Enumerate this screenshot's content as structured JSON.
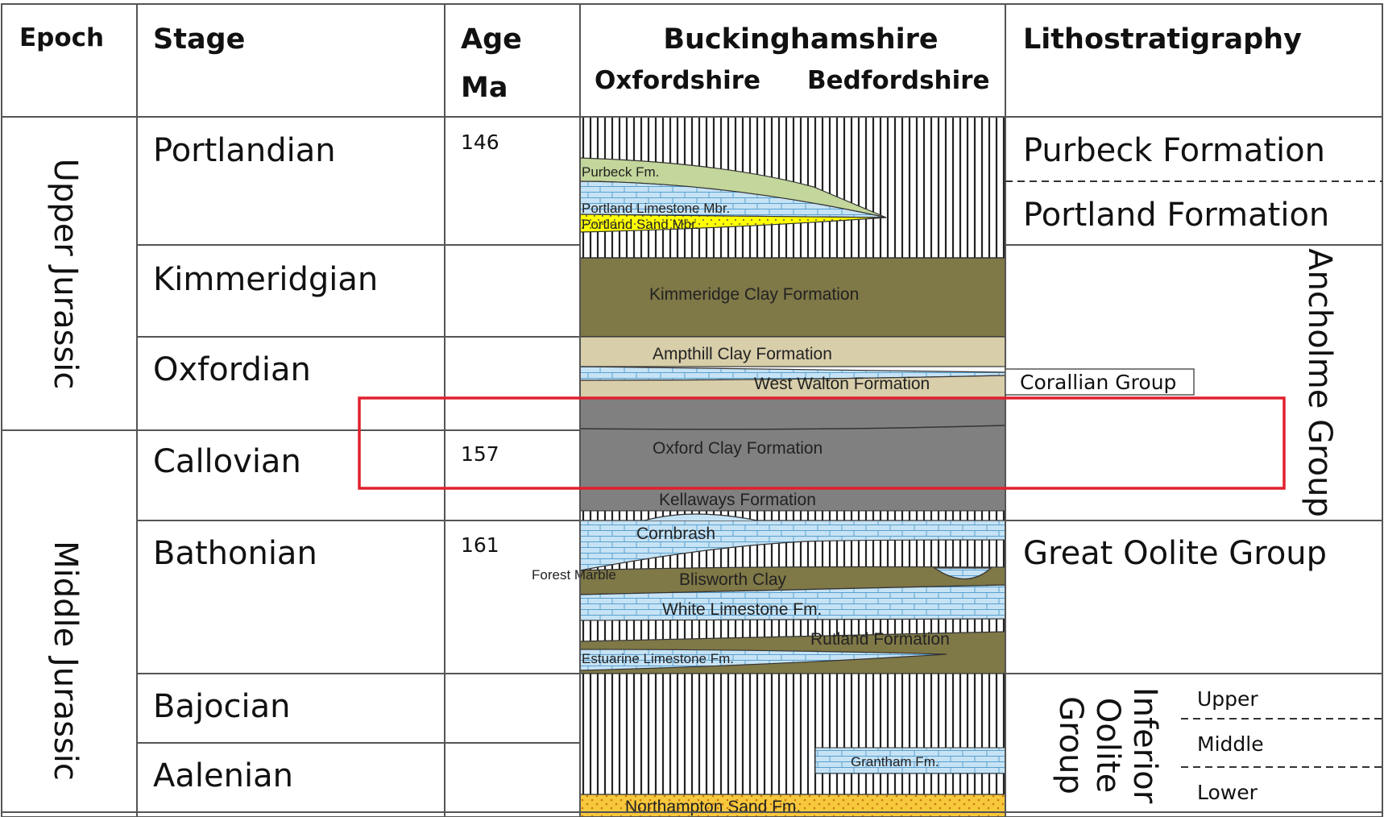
{
  "headers": {
    "epoch": "Epoch",
    "stage": "Stage",
    "age_line1": "Age",
    "age_line2": "Ma",
    "region_main": "Buckinghamshire",
    "region_left": "Oxfordshire",
    "region_right": "Bedfordshire",
    "lithostratigraphy": "Lithostratigraphy"
  },
  "epochs": [
    "Upper Jurassic",
    "Middle Jurassic"
  ],
  "stages": [
    "Portlandian",
    "Kimmeridgian",
    "Oxfordian",
    "Callovian",
    "Bathonian",
    "Bajocian",
    "Aalenian"
  ],
  "ages": {
    "portlandian": "146",
    "callovian": "157",
    "bathonian": "161"
  },
  "formations": {
    "purbeck": "Purbeck Fm.",
    "portland_limestone": "Portland Limestone Mbr.",
    "portland_sand": "Portland Sand Mbr.",
    "kimmeridge": "Kimmeridge Clay Formation",
    "ampthill": "Ampthill Clay Formation",
    "west_walton": "West Walton Formation",
    "oxford_clay": "Oxford Clay Formation",
    "kellaways": "Kellaways Formation",
    "cornbrash": "Cornbrash",
    "forest_marble": "Forest Marble",
    "blisworth": "Blisworth Clay",
    "white_limestone": "White Limestone Fm.",
    "rutland": "Rutland Formation",
    "estuarine": "Estuarine Limestone Fm.",
    "grantham": "Grantham Fm.",
    "northampton": "Northampton Sand Fm."
  },
  "lithostratigraphy": {
    "purbeck": "Purbeck Formation",
    "portland": "Portland Formation",
    "corallian": "Corallian Group",
    "ancholme": "Ancholme Group",
    "great_oolite": "Great Oolite Group",
    "inferior_1": "Inferior",
    "inferior_2": "Oolite",
    "inferior_3": "Group",
    "upper": "Upper",
    "middle": "Middle",
    "lower": "Lower"
  },
  "colors": {
    "olive": "#7f7847",
    "tan": "#d8ceaa",
    "green": "#c3d69b",
    "blue": "#c6e3f5",
    "yellow": "#ffff00",
    "grey": "#808080",
    "sand": "#f7c83c",
    "highlight": "#e0202e"
  }
}
